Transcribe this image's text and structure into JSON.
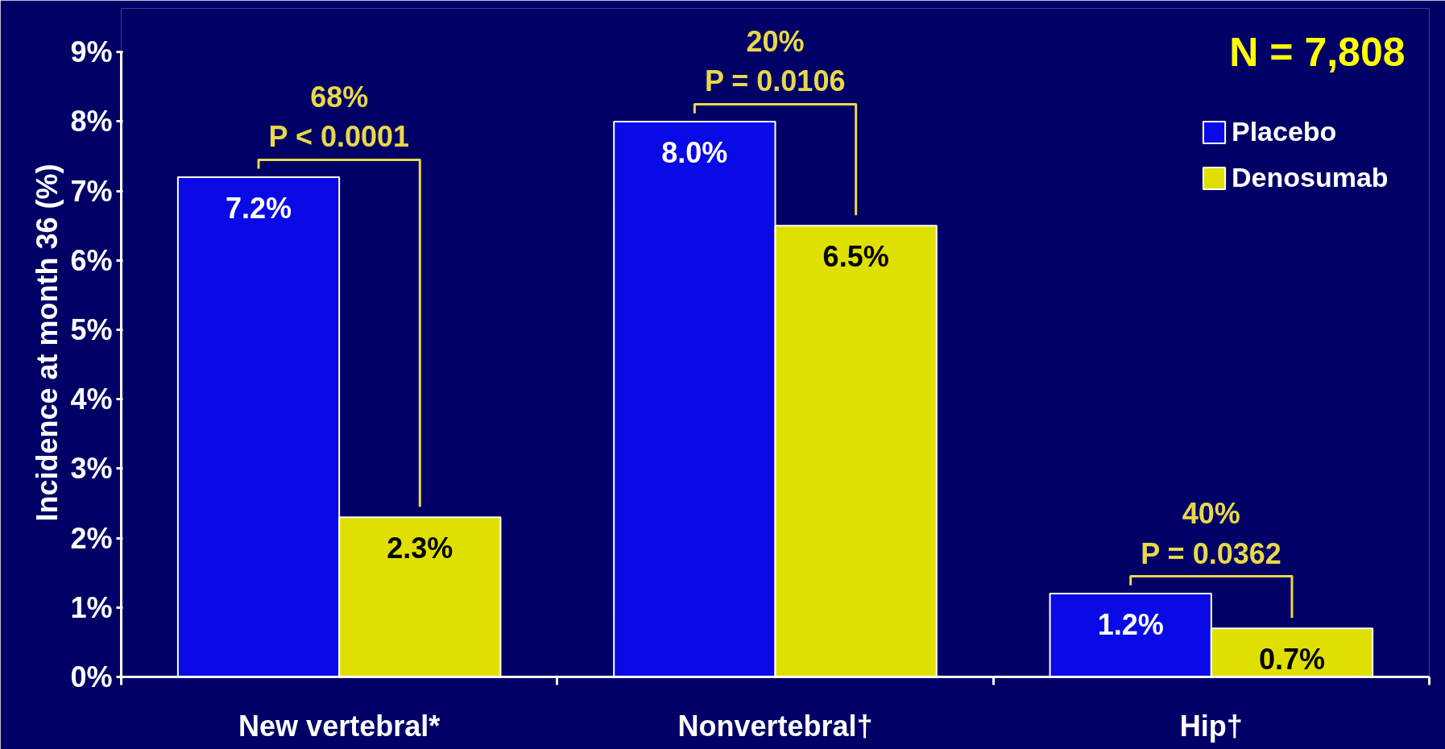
{
  "chart_data": {
    "type": "bar",
    "ylabel": "Incidence at month 36 (%)",
    "categories": [
      "New vertebral*",
      "Nonvertebral†",
      "Hip†"
    ],
    "series": [
      {
        "name": "Placebo",
        "color": "#0a0ae6",
        "values": [
          7.2,
          8.0,
          1.2
        ],
        "value_labels": [
          "7.2%",
          "8.0%",
          "1.2%"
        ]
      },
      {
        "name": "Denosumab",
        "color": "#e0e000",
        "values": [
          2.3,
          6.5,
          0.7
        ],
        "value_labels": [
          "2.3%",
          "6.5%",
          "0.7%"
        ]
      }
    ],
    "ylim": [
      0,
      9
    ],
    "yticks": [
      {
        "value": 0,
        "label": "0%"
      },
      {
        "value": 1,
        "label": "1%"
      },
      {
        "value": 2,
        "label": "2%"
      },
      {
        "value": 3,
        "label": "3%"
      },
      {
        "value": 4,
        "label": "4%"
      },
      {
        "value": 5,
        "label": "5%"
      },
      {
        "value": 6,
        "label": "6%"
      },
      {
        "value": 7,
        "label": "7%"
      },
      {
        "value": 8,
        "label": "8%"
      },
      {
        "value": 9,
        "label": "9%"
      }
    ],
    "annotations": [
      "68%\nP < 0.0001",
      "20%\nP = 0.0106",
      "40%\nP = 0.0362",
      "N = 7,808"
    ],
    "legend": "top right",
    "grid": false
  }
}
